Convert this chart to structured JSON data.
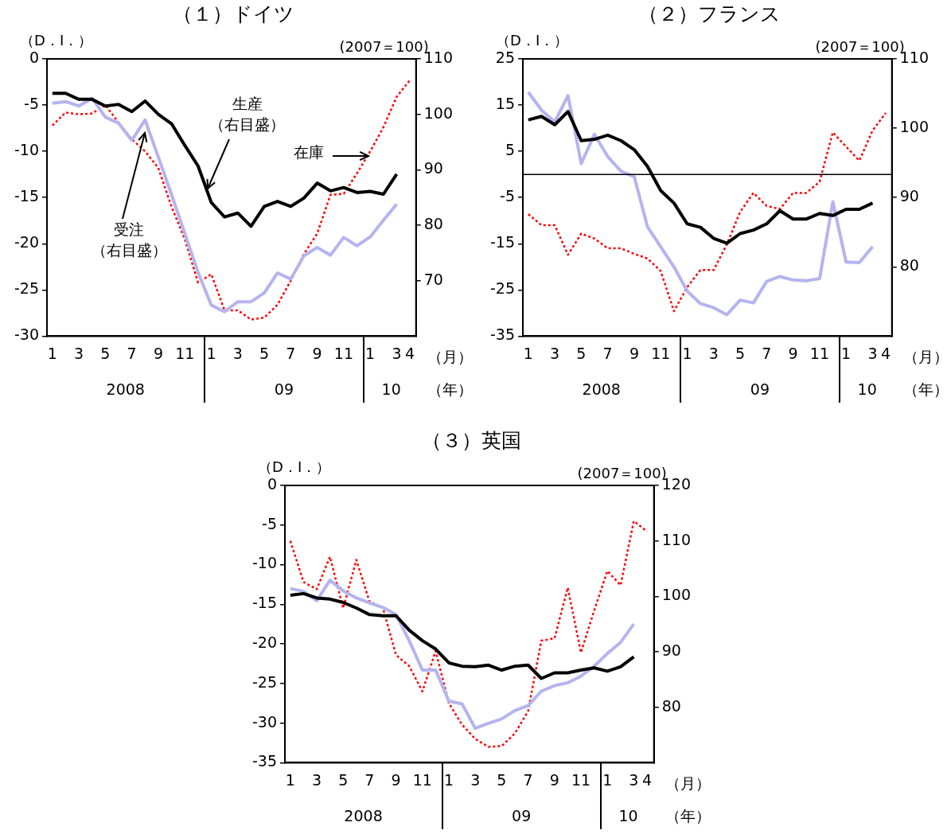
{
  "chart_data": [
    {
      "type": "line",
      "title": "（１）ドイツ",
      "ylabel": "（D．I．）",
      "y2label": "(2007＝100)",
      "xlabel": "（月）",
      "x2label": "（年）",
      "x": [
        "2008-01",
        "2008-02",
        "2008-03",
        "2008-04",
        "2008-05",
        "2008-06",
        "2008-07",
        "2008-08",
        "2008-09",
        "2008-10",
        "2008-11",
        "2008-12",
        "2009-01",
        "2009-02",
        "2009-03",
        "2009-04",
        "2009-05",
        "2009-06",
        "2009-07",
        "2009-08",
        "2009-09",
        "2009-10",
        "2009-11",
        "2009-12",
        "2010-01",
        "2010-02",
        "2010-03",
        "2010-04"
      ],
      "xlim": [
        "2007-12-19",
        "2010-04-15"
      ],
      "xticks": [
        {
          "value": "2008-01",
          "label": "1"
        },
        {
          "value": "2008-03",
          "label": "3"
        },
        {
          "value": "2008-05",
          "label": "5"
        },
        {
          "value": "2008-07",
          "label": "7"
        },
        {
          "value": "2008-09",
          "label": "9"
        },
        {
          "value": "2008-11",
          "label": "11"
        },
        {
          "value": "2009-01",
          "label": "1"
        },
        {
          "value": "2009-03",
          "label": "3"
        },
        {
          "value": "2009-05",
          "label": "5"
        },
        {
          "value": "2009-07",
          "label": "7"
        },
        {
          "value": "2009-09",
          "label": "9"
        },
        {
          "value": "2009-11",
          "label": "11"
        },
        {
          "value": "2010-01",
          "label": "1"
        },
        {
          "value": "2010-03",
          "label": "3"
        },
        {
          "value": "2010-04",
          "label": "4"
        }
      ],
      "x2lim": [
        "2007-12-19",
        "2010-04-15"
      ],
      "x2ticks": [
        {
          "value": "2008-06-17",
          "label": "2008"
        },
        {
          "value": "2009-06-16",
          "label": "09"
        },
        {
          "value": "2010-02-19",
          "label": "10"
        }
      ],
      "ylim": [
        -30,
        0
      ],
      "yticks": [
        -30,
        -25,
        -20,
        -15,
        -10,
        -5,
        0
      ],
      "y2lim": [
        60,
        110
      ],
      "y2ticks": [
        70,
        80,
        90,
        100,
        110
      ],
      "grid": false,
      "legend": false,
      "marker": "none",
      "annotations": [
        {
          "text": "生産（右目盛）",
          "x": "2008-12-23",
          "y": -14.0
        },
        {
          "text": "受注（右目盛）",
          "x": "2008-08",
          "y": -8.0
        },
        {
          "text": "在庫",
          "x": "2009-12-27",
          "y": -10.5
        }
      ],
      "series": [
        {
          "color": "#000000",
          "axis": "y2",
          "line_style": "solid",
          "values": [
            103.8,
            103.8,
            102.7,
            102.7,
            101.5,
            101.8,
            100.5,
            102.4,
            100.0,
            98.3,
            94.4,
            90.7,
            84.1,
            81.5,
            82.2,
            79.8,
            83.4,
            84.3,
            83.4,
            84.9,
            87.6,
            86.2,
            86.8,
            85.9,
            86.1,
            85.6,
            89.2,
            null
          ]
        },
        {
          "color": "#b4b4f0",
          "axis": "y2",
          "line_style": "solid",
          "values": [
            102.0,
            102.3,
            101.5,
            102.9,
            99.5,
            98.4,
            95.3,
            99.0,
            92.3,
            85.5,
            78.5,
            71.5,
            65.6,
            64.4,
            66.2,
            66.2,
            67.8,
            71.4,
            70.3,
            74.5,
            76.0,
            74.6,
            77.8,
            76.3,
            77.9,
            80.9,
            83.8,
            null
          ]
        },
        {
          "color": "#ff0000",
          "line_style": "dotted",
          "values": [
            -7.2,
            -5.8,
            -6.0,
            -5.9,
            -5.0,
            -6.9,
            -8.7,
            -10.0,
            -11.8,
            -16.0,
            -19.5,
            -24.2,
            -23.3,
            -27.2,
            -27.2,
            -28.2,
            -28.0,
            -26.6,
            -24.0,
            -21.1,
            -18.9,
            -14.7,
            -14.6,
            -12.4,
            -10.0,
            -7.4,
            -4.1,
            -2.3
          ]
        }
      ]
    },
    {
      "type": "line",
      "title": "（２）フランス",
      "ylabel": "（D．I．）",
      "y2label": "(2007＝100)",
      "xlabel": "（月）",
      "x2label": "（年）",
      "x": [
        "2008-01",
        "2008-02",
        "2008-03",
        "2008-04",
        "2008-05",
        "2008-06",
        "2008-07",
        "2008-08",
        "2008-09",
        "2008-10",
        "2008-11",
        "2008-12",
        "2009-01",
        "2009-02",
        "2009-03",
        "2009-04",
        "2009-05",
        "2009-06",
        "2009-07",
        "2009-08",
        "2009-09",
        "2009-10",
        "2009-11",
        "2009-12",
        "2010-01",
        "2010-02",
        "2010-03",
        "2010-04"
      ],
      "xlim": [
        "2007-12-19",
        "2010-04-15"
      ],
      "xticks": [
        {
          "value": "2008-01",
          "label": "1"
        },
        {
          "value": "2008-03",
          "label": "3"
        },
        {
          "value": "2008-05",
          "label": "5"
        },
        {
          "value": "2008-07",
          "label": "7"
        },
        {
          "value": "2008-09",
          "label": "9"
        },
        {
          "value": "2008-11",
          "label": "11"
        },
        {
          "value": "2009-01",
          "label": "1"
        },
        {
          "value": "2009-03",
          "label": "3"
        },
        {
          "value": "2009-05",
          "label": "5"
        },
        {
          "value": "2009-07",
          "label": "7"
        },
        {
          "value": "2009-09",
          "label": "9"
        },
        {
          "value": "2009-11",
          "label": "11"
        },
        {
          "value": "2010-01",
          "label": "1"
        },
        {
          "value": "2010-03",
          "label": "3"
        },
        {
          "value": "2010-04",
          "label": "4"
        }
      ],
      "x2lim": [
        "2007-12-19",
        "2010-04-15"
      ],
      "x2ticks": [
        {
          "value": "2008-06-17",
          "label": "2008"
        },
        {
          "value": "2009-06-16",
          "label": "09"
        },
        {
          "value": "2010-02-19",
          "label": "10"
        }
      ],
      "ylim": [
        -35,
        25
      ],
      "yticks": [
        -35,
        -25,
        -15,
        -5,
        5,
        15,
        25
      ],
      "y2lim": [
        70,
        110
      ],
      "y2ticks": [
        80,
        90,
        100,
        110
      ],
      "grid": false,
      "legend": false,
      "marker": "none",
      "ref_lines": [
        {
          "axis": "y",
          "value": 0,
          "color": "#000000",
          "line_style": "solid"
        }
      ],
      "series": [
        {
          "color": "#000000",
          "axis": "y2",
          "line_style": "solid",
          "values": [
            101.2,
            101.7,
            100.5,
            102.4,
            98.2,
            98.4,
            99.0,
            98.2,
            96.9,
            94.5,
            91.0,
            89.2,
            86.2,
            85.7,
            84.1,
            83.4,
            84.8,
            85.3,
            86.2,
            88.1,
            86.9,
            86.9,
            87.7,
            87.4,
            88.3,
            88.3,
            89.2,
            null
          ]
        },
        {
          "color": "#b4b4f0",
          "axis": "y2",
          "line_style": "solid",
          "values": [
            105.2,
            102.6,
            100.9,
            104.7,
            94.9,
            99.1,
            95.9,
            93.8,
            93.0,
            85.8,
            82.9,
            80.0,
            76.5,
            74.7,
            74.1,
            73.1,
            75.2,
            74.8,
            77.9,
            78.6,
            78.1,
            78.0,
            78.3,
            89.4,
            80.7,
            80.6,
            82.9,
            null
          ]
        },
        {
          "color": "#ff0000",
          "line_style": "dotted",
          "values": [
            -8.6,
            -11.0,
            -11.0,
            -17.4,
            -12.8,
            -13.9,
            -16.0,
            -16.0,
            -17.2,
            -18.2,
            -20.9,
            -29.6,
            -24.4,
            -20.7,
            -20.7,
            -15.1,
            -8.1,
            -4.0,
            -6.8,
            -7.5,
            -4.0,
            -4.0,
            -1.6,
            9.1,
            6.0,
            3.0,
            9.5,
            13.3
          ]
        }
      ]
    },
    {
      "type": "line",
      "title": "（３）英国",
      "ylabel": "（D．I．）",
      "y2label": "(2007＝100)",
      "xlabel": "（月）",
      "x2label": "（年）",
      "x": [
        "2008-01",
        "2008-02",
        "2008-03",
        "2008-04",
        "2008-05",
        "2008-06",
        "2008-07",
        "2008-08",
        "2008-09",
        "2008-10",
        "2008-11",
        "2008-12",
        "2009-01",
        "2009-02",
        "2009-03",
        "2009-04",
        "2009-05",
        "2009-06",
        "2009-07",
        "2009-08",
        "2009-09",
        "2009-10",
        "2009-11",
        "2009-12",
        "2010-01",
        "2010-02",
        "2010-03",
        "2010-04"
      ],
      "xlim": [
        "2007-12-19",
        "2010-04-17"
      ],
      "xticks": [
        {
          "value": "2008-01",
          "label": "1"
        },
        {
          "value": "2008-03",
          "label": "3"
        },
        {
          "value": "2008-05",
          "label": "5"
        },
        {
          "value": "2008-07",
          "label": "7"
        },
        {
          "value": "2008-09",
          "label": "9"
        },
        {
          "value": "2008-11",
          "label": "11"
        },
        {
          "value": "2009-01",
          "label": "1"
        },
        {
          "value": "2009-03",
          "label": "3"
        },
        {
          "value": "2009-05",
          "label": "5"
        },
        {
          "value": "2009-07",
          "label": "7"
        },
        {
          "value": "2009-09",
          "label": "9"
        },
        {
          "value": "2009-11",
          "label": "11"
        },
        {
          "value": "2010-01",
          "label": "1"
        },
        {
          "value": "2010-03",
          "label": "3"
        },
        {
          "value": "2010-04",
          "label": "4"
        }
      ],
      "x2lim": [
        "2007-12-19",
        "2010-04-17"
      ],
      "x2ticks": [
        {
          "value": "2008-06-17",
          "label": "2008"
        },
        {
          "value": "2009-06-16",
          "label": "09"
        },
        {
          "value": "2010-02-19",
          "label": "10"
        }
      ],
      "ylim": [
        -35,
        0
      ],
      "yticks": [
        -35,
        -30,
        -25,
        -20,
        -15,
        -10,
        -5,
        0
      ],
      "y2lim": [
        70,
        120
      ],
      "y2ticks": [
        80,
        90,
        100,
        110,
        120
      ],
      "grid": false,
      "legend": false,
      "marker": "none",
      "series": [
        {
          "color": "#000000",
          "axis": "y2",
          "line_style": "solid",
          "values": [
            100.2,
            100.5,
            99.7,
            99.5,
            98.9,
            97.9,
            96.7,
            96.5,
            96.5,
            93.9,
            92.0,
            90.5,
            88.0,
            87.4,
            87.3,
            87.6,
            86.7,
            87.4,
            87.6,
            85.2,
            86.2,
            86.2,
            86.7,
            87.1,
            86.5,
            87.3,
            89.1,
            null
          ]
        },
        {
          "color": "#b4b4f0",
          "axis": "y2",
          "line_style": "solid",
          "values": [
            101.4,
            100.9,
            99.2,
            102.9,
            101.0,
            99.7,
            98.8,
            98.0,
            96.7,
            92.0,
            86.7,
            86.7,
            81.1,
            80.6,
            76.2,
            77.1,
            77.9,
            79.4,
            80.3,
            82.9,
            83.9,
            84.4,
            85.6,
            87.4,
            89.7,
            91.7,
            95.0,
            null
          ]
        },
        {
          "color": "#ff0000",
          "line_style": "dotted",
          "values": [
            -7.0,
            -12.2,
            -13.1,
            -9.0,
            -15.5,
            -9.4,
            -14.7,
            -15.4,
            -21.4,
            -22.8,
            -26.0,
            -20.9,
            -27.5,
            -30.2,
            -32.0,
            -33.0,
            -32.9,
            -31.3,
            -28.5,
            -19.6,
            -19.3,
            -12.9,
            -21.1,
            -15.8,
            -10.8,
            -12.6,
            -4.5,
            -5.8
          ]
        }
      ]
    }
  ]
}
